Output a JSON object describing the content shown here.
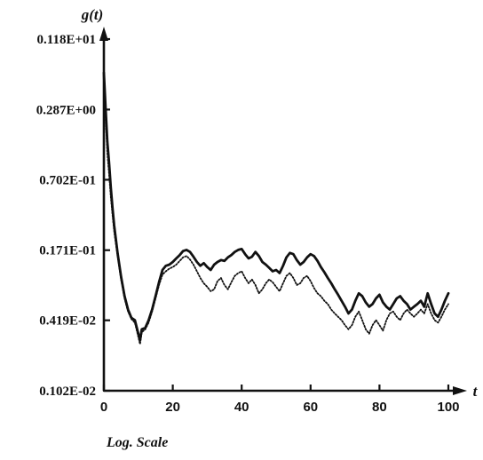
{
  "chart_data": {
    "type": "line",
    "ylabel": "g(t)",
    "xlabel": "t",
    "scale_note": "Log. Scale",
    "y_scale": "log",
    "ylim": [
      0.00102,
      1.18
    ],
    "xlim": [
      0,
      100
    ],
    "x_ticks": [
      {
        "value": 0,
        "label": "0"
      },
      {
        "value": 20,
        "label": "20"
      },
      {
        "value": 40,
        "label": "40"
      },
      {
        "value": 60,
        "label": "60"
      },
      {
        "value": 80,
        "label": "80"
      },
      {
        "value": 100,
        "label": "100"
      }
    ],
    "y_ticks": [
      {
        "value": 1.18,
        "label": "0.118E+01"
      },
      {
        "value": 0.287,
        "label": "0.287E+00"
      },
      {
        "value": 0.0702,
        "label": "0.702E-01"
      },
      {
        "value": 0.0171,
        "label": "0.171E-01"
      },
      {
        "value": 0.00419,
        "label": "0.419E-02"
      },
      {
        "value": 0.00102,
        "label": "0.102E-02"
      }
    ],
    "grid": false,
    "series": [
      {
        "style": "solid",
        "color": "#111111",
        "x": [
          0,
          0.5,
          1,
          1.5,
          2,
          2.5,
          3,
          4,
          5,
          6,
          7,
          8,
          9,
          10,
          10.5,
          11,
          12,
          13,
          14,
          15,
          16,
          17,
          18,
          19,
          20,
          21,
          22,
          23,
          24,
          25,
          26,
          27,
          28,
          29,
          30,
          31,
          32,
          33,
          34,
          35,
          36,
          37,
          38,
          39,
          40,
          41,
          42,
          43,
          44,
          45,
          46,
          47,
          48,
          49,
          50,
          51,
          52,
          53,
          54,
          55,
          56,
          57,
          58,
          59,
          60,
          61,
          62,
          63,
          64,
          65,
          66,
          67,
          68,
          69,
          70,
          71,
          72,
          73,
          74,
          75,
          76,
          77,
          78,
          79,
          80,
          81,
          82,
          83,
          84,
          85,
          86,
          87,
          88,
          89,
          90,
          91,
          92,
          93,
          94,
          95,
          96,
          97,
          98,
          99,
          100
        ],
        "y": [
          0.6,
          0.3,
          0.15,
          0.1,
          0.06,
          0.04,
          0.028,
          0.016,
          0.01,
          0.0068,
          0.0052,
          0.0044,
          0.0042,
          0.0032,
          0.0028,
          0.0035,
          0.0036,
          0.0042,
          0.0052,
          0.0068,
          0.009,
          0.0115,
          0.0125,
          0.0128,
          0.0135,
          0.0145,
          0.0155,
          0.0168,
          0.0172,
          0.0165,
          0.015,
          0.0135,
          0.0125,
          0.0132,
          0.0122,
          0.0115,
          0.0128,
          0.0135,
          0.014,
          0.0138,
          0.0148,
          0.0155,
          0.0165,
          0.0172,
          0.0175,
          0.0158,
          0.0145,
          0.015,
          0.0165,
          0.0152,
          0.0135,
          0.0128,
          0.012,
          0.0112,
          0.0115,
          0.0108,
          0.0125,
          0.0148,
          0.0162,
          0.0158,
          0.014,
          0.0128,
          0.0135,
          0.0148,
          0.0158,
          0.0152,
          0.0138,
          0.0122,
          0.011,
          0.0098,
          0.0088,
          0.0078,
          0.007,
          0.0062,
          0.0055,
          0.0048,
          0.0052,
          0.0062,
          0.0072,
          0.0068,
          0.006,
          0.0055,
          0.0058,
          0.0065,
          0.007,
          0.006,
          0.0055,
          0.0052,
          0.0058,
          0.0065,
          0.0068,
          0.0062,
          0.0058,
          0.0052,
          0.0055,
          0.0058,
          0.0062,
          0.0055,
          0.0072,
          0.0058,
          0.0048,
          0.0045,
          0.0052,
          0.0062,
          0.0072
        ]
      },
      {
        "style": "dotted",
        "color": "#111111",
        "x": [
          0,
          0.5,
          1,
          1.5,
          2,
          2.5,
          3,
          4,
          5,
          6,
          7,
          8,
          9,
          10,
          10.5,
          11,
          12,
          13,
          14,
          15,
          16,
          17,
          18,
          19,
          20,
          21,
          22,
          23,
          24,
          25,
          26,
          27,
          28,
          29,
          30,
          31,
          32,
          33,
          34,
          35,
          36,
          37,
          38,
          39,
          40,
          41,
          42,
          43,
          44,
          45,
          46,
          47,
          48,
          49,
          50,
          51,
          52,
          53,
          54,
          55,
          56,
          57,
          58,
          59,
          60,
          61,
          62,
          63,
          64,
          65,
          66,
          67,
          68,
          69,
          70,
          71,
          72,
          73,
          74,
          75,
          76,
          77,
          78,
          79,
          80,
          81,
          82,
          83,
          84,
          85,
          86,
          87,
          88,
          89,
          90,
          91,
          92,
          93,
          94,
          95,
          96,
          97,
          98,
          99,
          100
        ],
        "y": [
          0.5,
          0.25,
          0.12,
          0.08,
          0.05,
          0.035,
          0.025,
          0.015,
          0.0095,
          0.0065,
          0.005,
          0.0043,
          0.004,
          0.003,
          0.0026,
          0.0033,
          0.0035,
          0.004,
          0.005,
          0.0065,
          0.0085,
          0.0105,
          0.0112,
          0.0118,
          0.0122,
          0.0128,
          0.0138,
          0.0148,
          0.0152,
          0.0142,
          0.0128,
          0.0112,
          0.0098,
          0.0088,
          0.0082,
          0.0075,
          0.0078,
          0.0092,
          0.0098,
          0.0085,
          0.0078,
          0.009,
          0.0102,
          0.0108,
          0.0112,
          0.0098,
          0.0088,
          0.0095,
          0.0085,
          0.0072,
          0.0078,
          0.0088,
          0.0095,
          0.009,
          0.0082,
          0.0075,
          0.0088,
          0.0102,
          0.0108,
          0.0098,
          0.0085,
          0.0088,
          0.0098,
          0.0102,
          0.0092,
          0.008,
          0.0072,
          0.0068,
          0.0062,
          0.0058,
          0.0052,
          0.0048,
          0.0045,
          0.0042,
          0.0038,
          0.0035,
          0.0038,
          0.0045,
          0.005,
          0.0042,
          0.0035,
          0.0032,
          0.0038,
          0.0042,
          0.0038,
          0.0034,
          0.0042,
          0.0048,
          0.005,
          0.0045,
          0.0042,
          0.0048,
          0.0052,
          0.0048,
          0.0045,
          0.0048,
          0.0052,
          0.0048,
          0.0058,
          0.0048,
          0.0042,
          0.004,
          0.0045,
          0.0052,
          0.0058
        ]
      }
    ]
  }
}
